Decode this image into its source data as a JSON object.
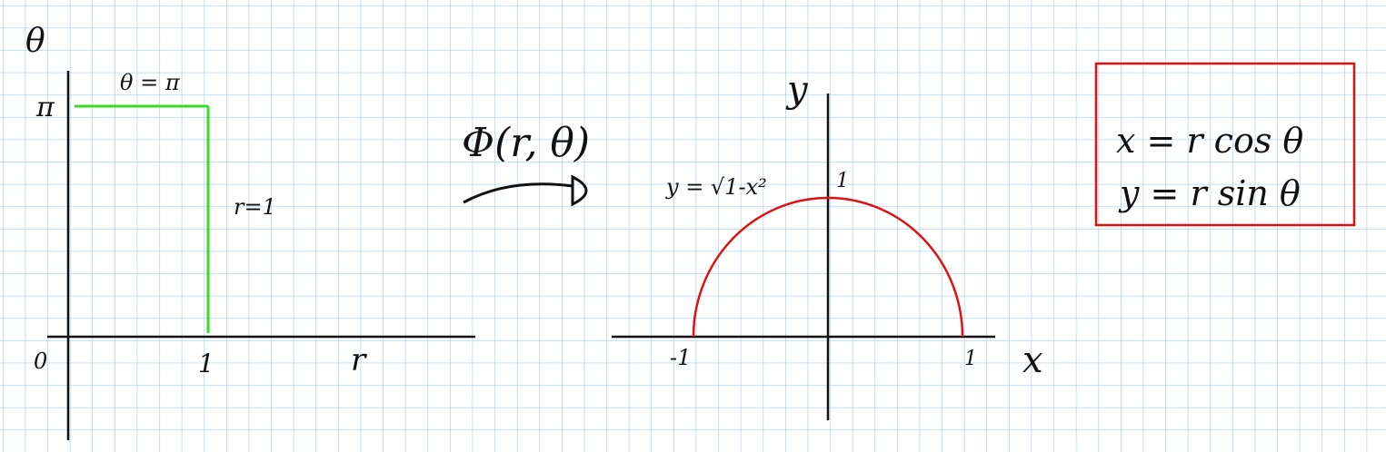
{
  "colors": {
    "grid": "#a9cbe6",
    "ink": "#111111",
    "green": "#33dd22",
    "red": "#e01010"
  },
  "left_plot": {
    "theta_axis_label": "θ",
    "pi_tick": "π",
    "top_edge_label": "θ = π",
    "right_edge_label": "r=1",
    "origin_label": "0",
    "one_tick": "1",
    "r_axis_label": "r"
  },
  "mapping": {
    "label": "Φ(r, θ)"
  },
  "right_plot": {
    "y_axis_label": "y",
    "x_axis_label": "x",
    "curve_label": "y = √1-x²",
    "y_tick_one": "1",
    "x_tick_minus_one": "-1",
    "x_tick_one": "1"
  },
  "equations_box": {
    "x_eq": "x = r cos θ",
    "y_eq": "y = r sin θ"
  }
}
